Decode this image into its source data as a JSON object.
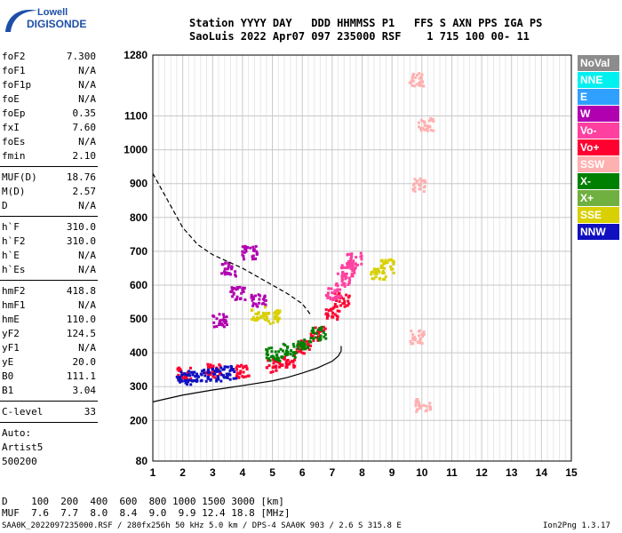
{
  "logo": {
    "line1": "Lowell",
    "line2": "DIGISONDE"
  },
  "header": {
    "line1": "Station YYYY DAY   DDD HHMMSS P1   FFS S AXN PPS IGA PS",
    "line2": "SaoLuis 2022 Apr07 097 235000 RSF    1 715 100 00- 11"
  },
  "params": [
    {
      "name": "foF2",
      "value": "7.300"
    },
    {
      "name": "foF1",
      "value": "N/A"
    },
    {
      "name": "foF1p",
      "value": "N/A"
    },
    {
      "name": "foE",
      "value": "N/A"
    },
    {
      "name": "foEp",
      "value": "0.35"
    },
    {
      "name": "fxI",
      "value": "7.60"
    },
    {
      "name": "foEs",
      "value": "N/A"
    },
    {
      "name": "fmin",
      "value": "2.10"
    },
    {
      "name": "MUF(D)",
      "value": "18.76"
    },
    {
      "name": "M(D)",
      "value": "2.57"
    },
    {
      "name": "D",
      "value": "N/A"
    },
    {
      "name": "h`F",
      "value": "310.0"
    },
    {
      "name": "h`F2",
      "value": "310.0"
    },
    {
      "name": "h`E",
      "value": "N/A"
    },
    {
      "name": "h`Es",
      "value": "N/A"
    },
    {
      "name": "hmF2",
      "value": "418.8"
    },
    {
      "name": "hmF1",
      "value": "N/A"
    },
    {
      "name": "hmE",
      "value": "110.0"
    },
    {
      "name": "yF2",
      "value": "124.5"
    },
    {
      "name": "yF1",
      "value": "N/A"
    },
    {
      "name": "yE",
      "value": "20.0"
    },
    {
      "name": "B0",
      "value": "111.1"
    },
    {
      "name": "B1",
      "value": "3.04"
    },
    {
      "name": "C-level",
      "value": "33"
    }
  ],
  "autoscale": {
    "line1": "Auto:",
    "line2": "Artist5",
    "line3": "500200"
  },
  "legend": [
    {
      "label": "NoVal",
      "bg": "#8c8c8c",
      "fg": "#ffffff"
    },
    {
      "label": "NNE",
      "bg": "#00f0f0",
      "fg": "#ffffff"
    },
    {
      "label": "E",
      "bg": "#30a0ff",
      "fg": "#ffffff"
    },
    {
      "label": "W",
      "bg": "#b000b0",
      "fg": "#ffffff"
    },
    {
      "label": "Vo-",
      "bg": "#ff40a0",
      "fg": "#ffffff"
    },
    {
      "label": "Vo+",
      "bg": "#ff0030",
      "fg": "#ffffff"
    },
    {
      "label": "SSW",
      "bg": "#ffb0b0",
      "fg": "#ffffff"
    },
    {
      "label": "X-",
      "bg": "#008000",
      "fg": "#ffffff"
    },
    {
      "label": "X+",
      "bg": "#70b040",
      "fg": "#ffffff"
    },
    {
      "label": "SSE",
      "bg": "#d8d000",
      "fg": "#ffffff"
    },
    {
      "label": "NNW",
      "bg": "#1010c0",
      "fg": "#ffffff"
    }
  ],
  "footer": {
    "dist_line": "D    100  200  400  600  800 1000 1500 3000 [km]",
    "muf_line": "MUF  7.6  7.7  8.0  8.4  9.0  9.9 12.4 18.8 [MHz]",
    "file_line": "SAA0K_2022097235000.RSF / 280fx256h 50 kHz 5.0 km / DPS-4 SAA0K 903 / 2.6 S 315.8 E",
    "version": "Ion2Png 1.3.17"
  },
  "chart_data": {
    "type": "scatter",
    "title": "",
    "xlabel": "",
    "ylabel": "",
    "xlim": [
      1,
      15
    ],
    "ylim": [
      80,
      1280
    ],
    "x_ticks": [
      1,
      2,
      3,
      4,
      5,
      6,
      7,
      8,
      9,
      10,
      11,
      12,
      13,
      14,
      15
    ],
    "y_ticks": [
      80,
      200,
      300,
      400,
      500,
      600,
      700,
      800,
      900,
      1000,
      1100,
      1280
    ],
    "grid": true,
    "series": [
      {
        "name": "trace-O",
        "style": "solid",
        "x": [
          1.0,
          2.0,
          3.0,
          4.0,
          5.0,
          5.5,
          6.0,
          6.5,
          7.0,
          7.2,
          7.3,
          7.3
        ],
        "y": [
          255,
          275,
          290,
          303,
          317,
          327,
          340,
          355,
          375,
          390,
          405,
          420
        ]
      },
      {
        "name": "trace-X",
        "style": "dashed",
        "x": [
          1.0,
          1.5,
          2.0,
          2.5,
          3.0,
          4.0,
          5.0,
          5.5,
          6.0,
          6.3
        ],
        "y": [
          930,
          850,
          770,
          720,
          690,
          650,
          600,
          575,
          545,
          510
        ]
      }
    ],
    "echo_clusters": [
      {
        "name": "F-trace main",
        "color": "#ff0030",
        "x": [
          2.0,
          3.0,
          4.0,
          5.0,
          5.5,
          6.0,
          6.5,
          7.0,
          7.3
        ],
        "y": [
          340,
          350,
          350,
          365,
          380,
          420,
          460,
          520,
          560
        ]
      },
      {
        "name": "F-trace low",
        "color": "#1010c0",
        "x": [
          2.0,
          2.5,
          3.0,
          3.5
        ],
        "y": [
          330,
          335,
          340,
          345
        ]
      },
      {
        "name": "spread W",
        "color": "#b000b0",
        "x": [
          3.2,
          3.5,
          3.8,
          4.2,
          4.5
        ],
        "y": [
          500,
          650,
          580,
          700,
          560
        ]
      },
      {
        "name": "Vo- upper",
        "color": "#ff40a0",
        "x": [
          7.0,
          7.3,
          7.5,
          7.7
        ],
        "y": [
          580,
          620,
          650,
          680
        ]
      },
      {
        "name": "X- trace",
        "color": "#008000",
        "x": [
          5.0,
          5.5,
          6.0,
          6.5
        ],
        "y": [
          400,
          410,
          430,
          460
        ]
      },
      {
        "name": "SSE spread",
        "color": "#d8d000",
        "x": [
          4.5,
          5.0,
          8.5,
          8.8
        ],
        "y": [
          520,
          510,
          640,
          660
        ]
      },
      {
        "name": "SSW 10MHz",
        "color": "#ffb0b0",
        "x": [
          9.8,
          9.8,
          9.9,
          10.0,
          10.1
        ],
        "y": [
          1210,
          450,
          900,
          250,
          1080
        ]
      }
    ]
  }
}
